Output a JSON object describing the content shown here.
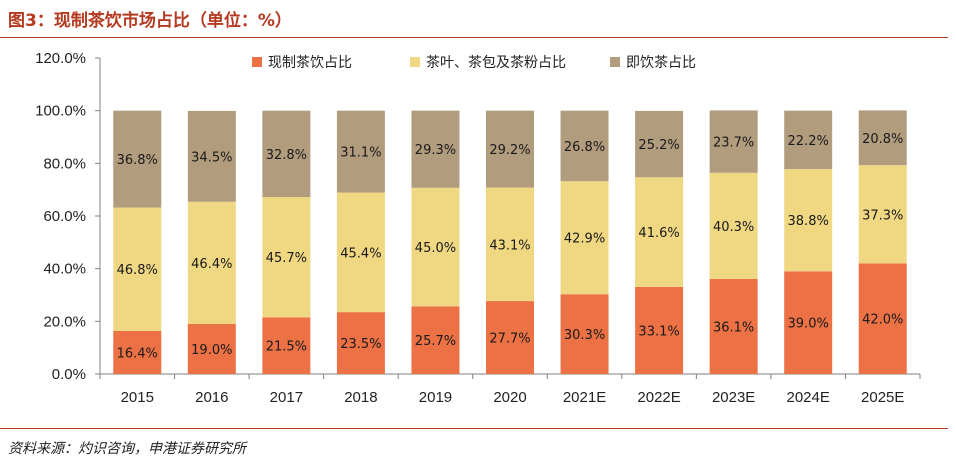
{
  "header": {
    "title": "图3：现制茶饮市场占比（单位：%）"
  },
  "footer": {
    "source": "资料来源：灼识咨询，申港证券研究所"
  },
  "colors": {
    "accent": "#b5391f",
    "series_1": "#ec7145",
    "series_2": "#f0d883",
    "series_3": "#b29c7e"
  },
  "chart_data": {
    "type": "stacked_bar",
    "title": "现制茶饮市场占比（单位：%）",
    "xlabel": "",
    "ylabel": "",
    "ylim": [
      0,
      120
    ],
    "yticks": [
      "0.0%",
      "20.0%",
      "40.0%",
      "60.0%",
      "80.0%",
      "100.0%",
      "120.0%"
    ],
    "categories": [
      "2015",
      "2016",
      "2017",
      "2018",
      "2019",
      "2020",
      "2021E",
      "2022E",
      "2023E",
      "2024E",
      "2025E"
    ],
    "legend_position": "top",
    "grid": false,
    "series": [
      {
        "name": "现制茶饮占比",
        "color": "#ec7145",
        "values": [
          16.4,
          19.0,
          21.5,
          23.5,
          25.7,
          27.7,
          30.3,
          33.1,
          36.1,
          39.0,
          42.0
        ],
        "labels": [
          "16.4%",
          "19.0%",
          "21.5%",
          "23.5%",
          "25.7%",
          "27.7%",
          "30.3%",
          "33.1%",
          "36.1%",
          "39.0%",
          "42.0%"
        ]
      },
      {
        "name": "茶叶、茶包及茶粉占比",
        "color": "#f0d883",
        "values": [
          46.8,
          46.4,
          45.7,
          45.4,
          45.0,
          43.1,
          42.9,
          41.6,
          40.3,
          38.8,
          37.3
        ],
        "labels": [
          "46.8%",
          "46.4%",
          "45.7%",
          "45.4%",
          "45.0%",
          "43.1%",
          "42.9%",
          "41.6%",
          "40.3%",
          "38.8%",
          "37.3%"
        ]
      },
      {
        "name": "即饮茶占比",
        "color": "#b29c7e",
        "values": [
          36.8,
          34.5,
          32.8,
          31.1,
          29.3,
          29.2,
          26.8,
          25.2,
          23.7,
          22.2,
          20.8
        ],
        "labels": [
          "36.8%",
          "34.5%",
          "32.8%",
          "31.1%",
          "29.3%",
          "29.2%",
          "26.8%",
          "25.2%",
          "23.7%",
          "22.2%",
          "20.8%"
        ]
      }
    ]
  }
}
